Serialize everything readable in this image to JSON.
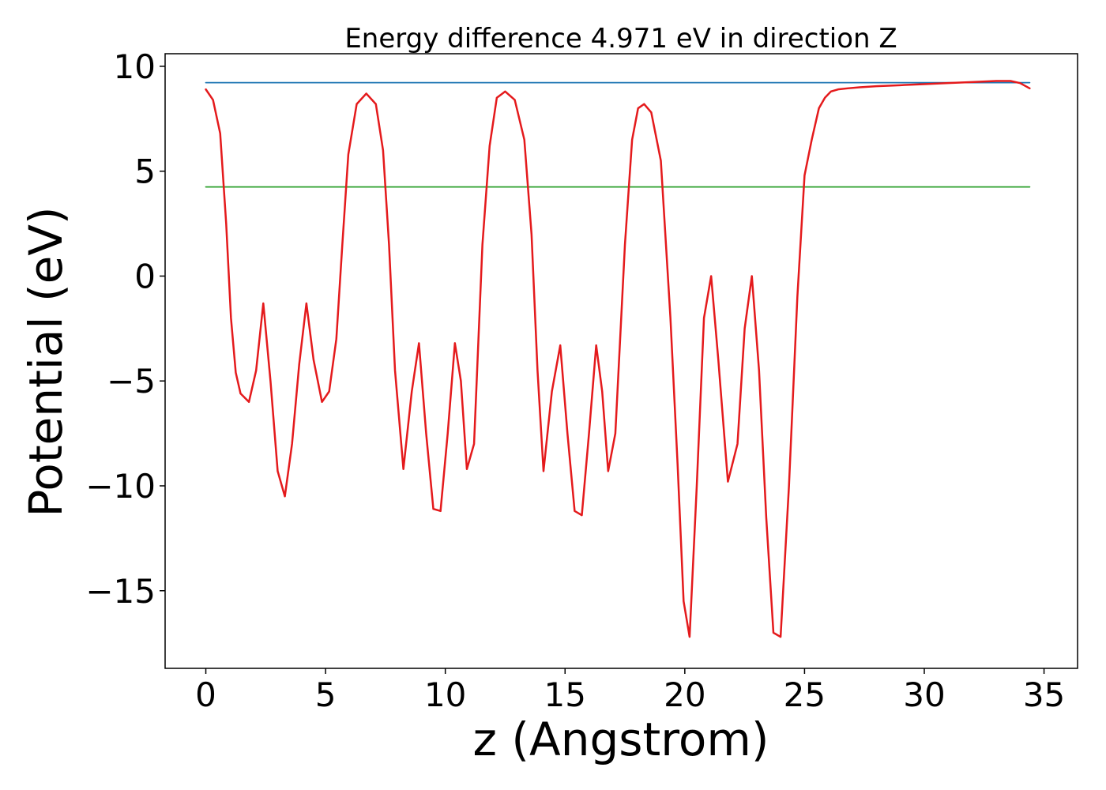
{
  "chart_data": {
    "type": "line",
    "title": "Energy difference 4.971 eV in direction Z",
    "xlabel": "z (Angstrom)",
    "ylabel": "Potential (eV)",
    "xlim": [
      -1.7,
      36.4
    ],
    "ylim": [
      -18.7,
      10.6
    ],
    "xticks": [
      0,
      5,
      10,
      15,
      20,
      25,
      30,
      35
    ],
    "xtick_labels": [
      "0",
      "5",
      "10",
      "15",
      "20",
      "25",
      "30",
      "35"
    ],
    "yticks": [
      10,
      5,
      0,
      -5,
      -10,
      -15
    ],
    "ytick_labels": [
      "10",
      "5",
      "0",
      "−5",
      "−10",
      "−15"
    ],
    "grid": false,
    "series": [
      {
        "color": "#1f77b4",
        "x": [
          0,
          34.4
        ],
        "y": [
          9.22,
          9.22
        ]
      },
      {
        "color": "#2ca02c",
        "x": [
          0,
          34.4
        ],
        "y": [
          4.25,
          4.25
        ]
      },
      {
        "color": "#e41a1c",
        "x": [
          0,
          0.3,
          0.6,
          0.85,
          1.05,
          1.25,
          1.45,
          1.8,
          2.1,
          2.4,
          2.7,
          3.0,
          3.3,
          3.6,
          3.9,
          4.2,
          4.5,
          4.85,
          5.15,
          5.45,
          5.7,
          5.95,
          6.3,
          6.7,
          7.1,
          7.4,
          7.65,
          7.9,
          8.25,
          8.6,
          8.9,
          9.2,
          9.5,
          9.8,
          10.1,
          10.4,
          10.65,
          10.9,
          11.2,
          11.55,
          11.85,
          12.15,
          12.5,
          12.9,
          13.3,
          13.6,
          13.85,
          14.1,
          14.45,
          14.8,
          15.1,
          15.4,
          15.7,
          16.0,
          16.3,
          16.55,
          16.8,
          17.1,
          17.5,
          17.8,
          18.05,
          18.3,
          18.6,
          19.0,
          19.4,
          19.7,
          19.95,
          20.2,
          20.5,
          20.8,
          21.1,
          21.4,
          21.8,
          22.2,
          22.5,
          22.8,
          23.1,
          23.4,
          23.7,
          24.0,
          24.35,
          24.7,
          25.0,
          25.3,
          25.6,
          25.85,
          26.1,
          26.4,
          26.8,
          27.3,
          28.0,
          29.0,
          30.0,
          31.0,
          32.0,
          33.0,
          33.6,
          34.0,
          34.4
        ],
        "y": [
          8.9,
          8.4,
          6.8,
          2.5,
          -2.0,
          -4.6,
          -5.6,
          -6.0,
          -4.5,
          -1.3,
          -5.0,
          -9.3,
          -10.5,
          -8.0,
          -4.2,
          -1.3,
          -4.0,
          -6.0,
          -5.5,
          -3.0,
          1.5,
          5.8,
          8.2,
          8.7,
          8.2,
          6.0,
          1.5,
          -4.5,
          -9.2,
          -5.5,
          -3.2,
          -7.5,
          -11.1,
          -11.2,
          -7.5,
          -3.2,
          -5.0,
          -9.2,
          -8.0,
          1.5,
          6.2,
          8.5,
          8.8,
          8.4,
          6.5,
          2.0,
          -4.5,
          -9.3,
          -5.5,
          -3.3,
          -7.5,
          -11.2,
          -11.4,
          -7.5,
          -3.3,
          -5.5,
          -9.3,
          -7.5,
          1.5,
          6.5,
          8.0,
          8.2,
          7.8,
          5.5,
          -2.0,
          -9.0,
          -15.5,
          -17.2,
          -10.0,
          -2.0,
          0.0,
          -4.0,
          -9.8,
          -8.0,
          -2.5,
          0.0,
          -4.5,
          -11.5,
          -17.0,
          -17.2,
          -10.0,
          -1.0,
          4.8,
          6.5,
          8.0,
          8.5,
          8.8,
          8.9,
          8.95,
          9.0,
          9.05,
          9.1,
          9.15,
          9.2,
          9.25,
          9.3,
          9.3,
          9.2,
          8.95
        ]
      }
    ]
  }
}
